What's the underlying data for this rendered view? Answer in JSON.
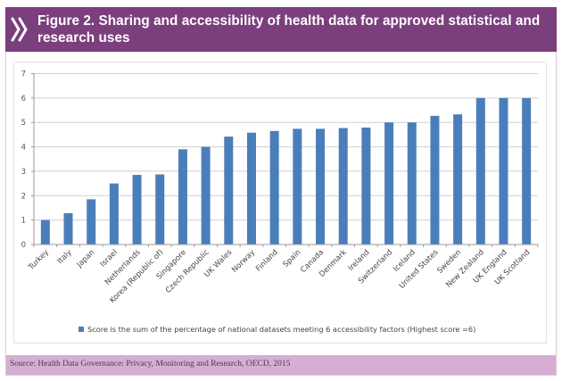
{
  "header": {
    "icon": "double-chevron-right-icon",
    "title": "Figure 2. Sharing and accessibility of health data for approved statistical and research uses"
  },
  "footer": {
    "source": "Source:  Health Data Governance: Privacy, Monitoring and Research, OECD, 2015"
  },
  "colors": {
    "header_bg": "#7b3f7e",
    "footer_bg": "#d6aed3",
    "bar": "#4a7ebb"
  },
  "chart_data": {
    "type": "bar",
    "title": "Figure 2. Sharing and accessibility of health data for approved statistical and research uses",
    "xlabel": "",
    "ylabel": "",
    "ylim": [
      0,
      7
    ],
    "yticks": [
      0,
      1,
      2,
      3,
      4,
      5,
      6,
      7
    ],
    "grid": true,
    "legend_position": "bottom",
    "categories": [
      "Turkey",
      "Italy",
      "Japan",
      "Israel",
      "Netherlands",
      "Korea (Republic of)",
      "Singapore",
      "Czech Republic",
      "UK Wales",
      "Norway",
      "Finland",
      "Spain",
      "Canada",
      "Denmark",
      "Ireland",
      "Switzerland",
      "Iceland",
      "United States",
      "Sweden",
      "New Zealand",
      "UK England",
      "UK Scotland"
    ],
    "series": [
      {
        "name": "Score is the sum of the percentage of national datasets meeting 6 accessibility factors (Highest score =6)",
        "values": [
          1.0,
          1.28,
          1.85,
          2.5,
          2.85,
          2.87,
          3.9,
          4.0,
          4.42,
          4.58,
          4.65,
          4.74,
          4.74,
          4.77,
          4.79,
          5.0,
          5.0,
          5.27,
          5.33,
          6.0,
          6.0,
          6.0
        ]
      }
    ]
  }
}
